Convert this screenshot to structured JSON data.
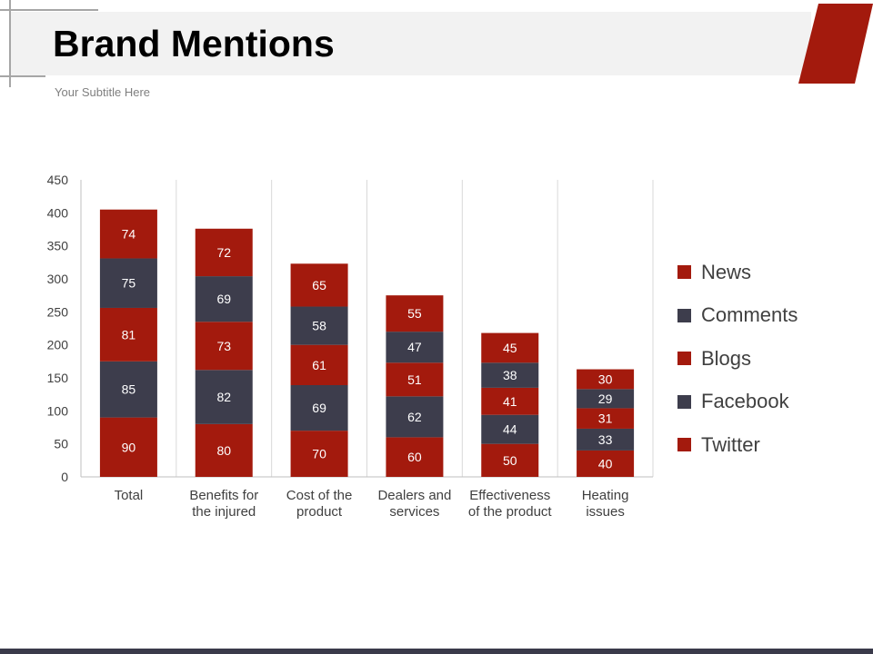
{
  "header": {
    "title": "Brand Mentions",
    "subtitle": "Your Subtitle Here"
  },
  "colors": {
    "accent": "#a31a0d",
    "dark": "#3d3d4c",
    "title_band": "#f2f2f2",
    "axis": "#bfbfbf",
    "tick_text": "#404040"
  },
  "chart_data": {
    "type": "bar",
    "stacked": true,
    "title": "",
    "xlabel": "",
    "ylabel": "",
    "ylim": [
      0,
      450
    ],
    "yticks": [
      0,
      50,
      100,
      150,
      200,
      250,
      300,
      350,
      400,
      450
    ],
    "categories": [
      [
        "Total"
      ],
      [
        "Benefits for",
        "the injured"
      ],
      [
        "Cost of the",
        "product"
      ],
      [
        "Dealers and",
        "services"
      ],
      [
        "Effectiveness",
        "of the product"
      ],
      [
        "Heating",
        "issues"
      ]
    ],
    "series": [
      {
        "name": "Twitter",
        "color": "#a31a0d",
        "values": [
          90,
          80,
          70,
          60,
          50,
          40
        ]
      },
      {
        "name": "Facebook",
        "color": "#3d3d4c",
        "values": [
          85,
          82,
          69,
          62,
          44,
          33
        ]
      },
      {
        "name": "Blogs",
        "color": "#a31a0d",
        "values": [
          81,
          73,
          61,
          51,
          41,
          31
        ]
      },
      {
        "name": "Comments",
        "color": "#3d3d4c",
        "values": [
          75,
          69,
          58,
          47,
          38,
          29
        ]
      },
      {
        "name": "News",
        "color": "#a31a0d",
        "values": [
          74,
          72,
          65,
          55,
          45,
          30
        ]
      }
    ],
    "legend": {
      "position": "right",
      "items": [
        {
          "label": "News",
          "color": "#a31a0d"
        },
        {
          "label": "Comments",
          "color": "#3d3d4c"
        },
        {
          "label": "Blogs",
          "color": "#a31a0d"
        },
        {
          "label": "Facebook",
          "color": "#3d3d4c"
        },
        {
          "label": "Twitter",
          "color": "#a31a0d"
        }
      ]
    }
  }
}
